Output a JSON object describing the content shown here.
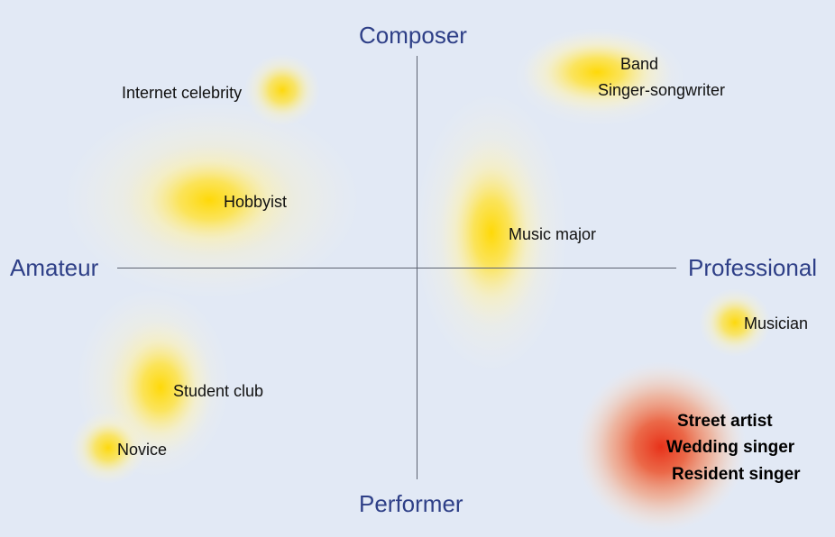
{
  "axes": {
    "top": "Composer",
    "bottom": "Performer",
    "left": "Amateur",
    "right": "Professional"
  },
  "colors": {
    "background": "#e2e9f5",
    "axis_label": "#2e3f87",
    "axis_line": "#5c6270",
    "warm": "#ffd500",
    "hot": "#e63a1e"
  },
  "items": [
    {
      "label": "Internet celebrity",
      "intensity": "low"
    },
    {
      "label": "Hobbyist",
      "intensity": "medium"
    },
    {
      "label": "Band",
      "intensity": "medium"
    },
    {
      "label": "Singer-songwriter",
      "intensity": "medium"
    },
    {
      "label": "Music major",
      "intensity": "medium"
    },
    {
      "label": "Musician",
      "intensity": "low"
    },
    {
      "label": "Student club",
      "intensity": "medium"
    },
    {
      "label": "Novice",
      "intensity": "low"
    },
    {
      "label": "Street artist",
      "intensity": "high"
    },
    {
      "label": "Wedding singer",
      "intensity": "high"
    },
    {
      "label": "Resident singer",
      "intensity": "high"
    }
  ]
}
